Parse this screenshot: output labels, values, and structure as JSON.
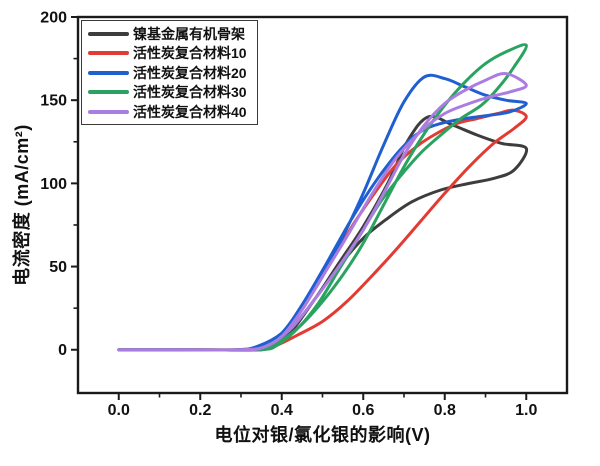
{
  "figure": {
    "background": "#ffffff",
    "frame_color": "#1a1a1a"
  },
  "chart_data": {
    "type": "line",
    "subtype": "cyclic-voltammetry-loops",
    "title": "",
    "xlabel": "电位对银/氯化银的影响(V)",
    "ylabel": "电流密度 (mA/cm²)",
    "xlim": [
      -0.1,
      1.1
    ],
    "ylim": [
      -26,
      200
    ],
    "grid": false,
    "legend_position": "top-left-inside",
    "x_ticks": [
      {
        "v": 0.0,
        "label": "0.0"
      },
      {
        "v": 0.2,
        "label": "0.2"
      },
      {
        "v": 0.4,
        "label": "0.4"
      },
      {
        "v": 0.6,
        "label": "0.6"
      },
      {
        "v": 0.8,
        "label": "0.8"
      },
      {
        "v": 1.0,
        "label": "1.0"
      }
    ],
    "x_minor_ticks": [
      0.1,
      0.3,
      0.5,
      0.7,
      0.9
    ],
    "y_ticks": [
      {
        "v": 0,
        "label": "0"
      },
      {
        "v": 50,
        "label": "50"
      },
      {
        "v": 100,
        "label": "100"
      },
      {
        "v": 150,
        "label": "150"
      },
      {
        "v": 200,
        "label": "200"
      }
    ],
    "y_minor_ticks": [
      25,
      75,
      125,
      175
    ],
    "series": [
      {
        "name": "镍基金属有机骨架",
        "color": "#3d3d3d",
        "forward": [
          [
            0,
            0
          ],
          [
            0.15,
            0
          ],
          [
            0.3,
            0
          ],
          [
            0.36,
            2
          ],
          [
            0.42,
            12
          ],
          [
            0.48,
            30
          ],
          [
            0.54,
            52
          ],
          [
            0.6,
            74
          ],
          [
            0.66,
            100
          ],
          [
            0.71,
            126
          ],
          [
            0.76,
            140
          ],
          [
            0.82,
            135
          ],
          [
            0.88,
            129
          ],
          [
            0.94,
            124
          ],
          [
            1.0,
            121
          ]
        ],
        "reverse": [
          [
            0.97,
            108
          ],
          [
            0.92,
            103
          ],
          [
            0.86,
            100
          ],
          [
            0.79,
            96
          ],
          [
            0.72,
            89
          ],
          [
            0.66,
            79
          ],
          [
            0.6,
            67
          ],
          [
            0.54,
            50
          ],
          [
            0.48,
            30
          ],
          [
            0.43,
            13
          ],
          [
            0.39,
            4
          ],
          [
            0.35,
            0
          ],
          [
            0.2,
            0
          ],
          [
            0,
            0
          ]
        ]
      },
      {
        "name": "活性炭复合材料10",
        "color": "#e23b33",
        "forward": [
          [
            0,
            0
          ],
          [
            0.15,
            0
          ],
          [
            0.32,
            0
          ],
          [
            0.38,
            2
          ],
          [
            0.44,
            9
          ],
          [
            0.5,
            17
          ],
          [
            0.56,
            29
          ],
          [
            0.62,
            44
          ],
          [
            0.68,
            60
          ],
          [
            0.74,
            77
          ],
          [
            0.8,
            94
          ],
          [
            0.86,
            110
          ],
          [
            0.92,
            124
          ],
          [
            0.97,
            133
          ],
          [
            1.0,
            140
          ]
        ],
        "reverse": [
          [
            0.97,
            144
          ],
          [
            0.93,
            142
          ],
          [
            0.88,
            139
          ],
          [
            0.83,
            136
          ],
          [
            0.78,
            130
          ],
          [
            0.73,
            122
          ],
          [
            0.68,
            111
          ],
          [
            0.63,
            95
          ],
          [
            0.58,
            77
          ],
          [
            0.53,
            57
          ],
          [
            0.48,
            37
          ],
          [
            0.43,
            18
          ],
          [
            0.39,
            6
          ],
          [
            0.35,
            1
          ],
          [
            0.3,
            0
          ],
          [
            0.15,
            0
          ],
          [
            0,
            0
          ]
        ]
      },
      {
        "name": "活性炭复合材料20",
        "color": "#1f5fd0",
        "forward": [
          [
            0,
            0
          ],
          [
            0.15,
            0
          ],
          [
            0.29,
            0
          ],
          [
            0.34,
            2
          ],
          [
            0.4,
            10
          ],
          [
            0.45,
            25
          ],
          [
            0.5,
            44
          ],
          [
            0.55,
            68
          ],
          [
            0.6,
            94
          ],
          [
            0.65,
            123
          ],
          [
            0.7,
            149
          ],
          [
            0.75,
            164
          ],
          [
            0.8,
            163
          ],
          [
            0.85,
            158
          ],
          [
            0.9,
            153
          ],
          [
            0.95,
            150
          ],
          [
            1.0,
            148
          ]
        ],
        "reverse": [
          [
            0.96,
            143
          ],
          [
            0.91,
            141
          ],
          [
            0.85,
            139
          ],
          [
            0.79,
            136
          ],
          [
            0.74,
            131
          ],
          [
            0.69,
            120
          ],
          [
            0.63,
            101
          ],
          [
            0.57,
            78
          ],
          [
            0.51,
            52
          ],
          [
            0.45,
            27
          ],
          [
            0.4,
            10
          ],
          [
            0.35,
            2
          ],
          [
            0.3,
            0
          ],
          [
            0.15,
            0
          ],
          [
            0,
            0
          ]
        ]
      },
      {
        "name": "活性炭复合材料30",
        "color": "#2aa360",
        "forward": [
          [
            0,
            0
          ],
          [
            0.15,
            0
          ],
          [
            0.31,
            0
          ],
          [
            0.37,
            2
          ],
          [
            0.43,
            11
          ],
          [
            0.49,
            26
          ],
          [
            0.55,
            45
          ],
          [
            0.6,
            64
          ],
          [
            0.65,
            87
          ],
          [
            0.7,
            110
          ],
          [
            0.75,
            130
          ],
          [
            0.8,
            147
          ],
          [
            0.85,
            161
          ],
          [
            0.9,
            172
          ],
          [
            0.95,
            179
          ],
          [
            1.0,
            183
          ]
        ],
        "reverse": [
          [
            0.97,
            170
          ],
          [
            0.93,
            157
          ],
          [
            0.89,
            147
          ],
          [
            0.84,
            139
          ],
          [
            0.79,
            129
          ],
          [
            0.74,
            118
          ],
          [
            0.69,
            104
          ],
          [
            0.64,
            88
          ],
          [
            0.59,
            68
          ],
          [
            0.54,
            48
          ],
          [
            0.49,
            28
          ],
          [
            0.44,
            13
          ],
          [
            0.39,
            3
          ],
          [
            0.35,
            0
          ],
          [
            0.2,
            0
          ],
          [
            0,
            0
          ]
        ]
      },
      {
        "name": "活性炭复合材料40",
        "color": "#ab7de0",
        "forward": [
          [
            0,
            0
          ],
          [
            0.15,
            0
          ],
          [
            0.3,
            0
          ],
          [
            0.36,
            2
          ],
          [
            0.42,
            12
          ],
          [
            0.48,
            30
          ],
          [
            0.54,
            50
          ],
          [
            0.6,
            72
          ],
          [
            0.65,
            94
          ],
          [
            0.7,
            117
          ],
          [
            0.75,
            135
          ],
          [
            0.8,
            148
          ],
          [
            0.85,
            156
          ],
          [
            0.9,
            162
          ],
          [
            0.95,
            166
          ],
          [
            1.0,
            159
          ]
        ],
        "reverse": [
          [
            0.96,
            155
          ],
          [
            0.91,
            152
          ],
          [
            0.86,
            148
          ],
          [
            0.8,
            142
          ],
          [
            0.74,
            131
          ],
          [
            0.68,
            115
          ],
          [
            0.62,
            93
          ],
          [
            0.56,
            68
          ],
          [
            0.5,
            44
          ],
          [
            0.45,
            24
          ],
          [
            0.4,
            8
          ],
          [
            0.35,
            1
          ],
          [
            0.3,
            0
          ],
          [
            0.15,
            0
          ],
          [
            0,
            0
          ]
        ]
      }
    ]
  }
}
